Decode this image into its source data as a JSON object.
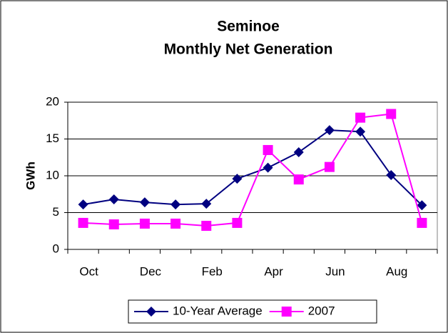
{
  "chart_data": {
    "type": "line",
    "title": [
      "Seminoe",
      "Monthly Net Generation"
    ],
    "y_label": "GWh",
    "categories": [
      "Oct",
      null,
      "Dec",
      null,
      "Feb",
      null,
      "Apr",
      null,
      "Jun",
      null,
      "Aug",
      null
    ],
    "series": [
      {
        "name": "10-Year Average",
        "color": "#000080",
        "marker": "diamond",
        "values": [
          6.1,
          6.8,
          6.4,
          6.1,
          6.2,
          9.6,
          11.1,
          13.2,
          16.2,
          16.0,
          10.1,
          6.0
        ]
      },
      {
        "name": "2007",
        "color": "#ff00ff",
        "marker": "square",
        "values": [
          3.6,
          3.4,
          3.5,
          3.5,
          3.2,
          3.6,
          13.5,
          9.5,
          11.2,
          17.9,
          18.4,
          3.6
        ]
      }
    ],
    "ylim": [
      0,
      20
    ],
    "yticks": [
      0,
      5,
      10,
      15,
      20
    ],
    "grid": true,
    "legend": "bottom"
  }
}
